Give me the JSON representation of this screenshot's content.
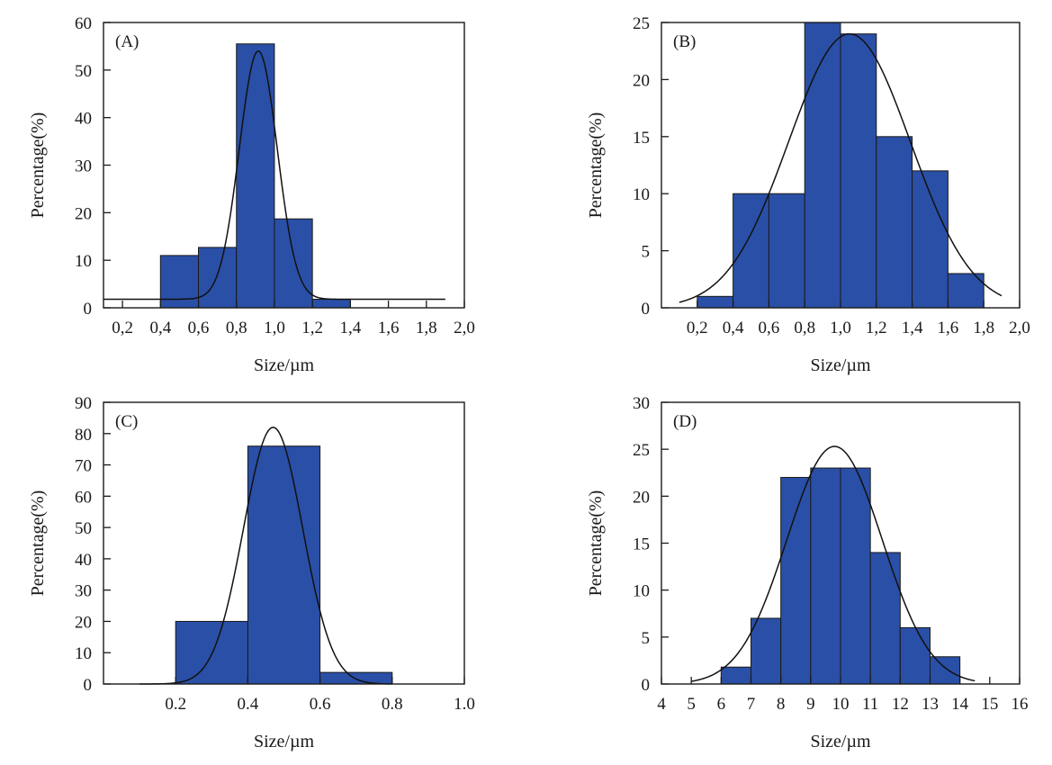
{
  "chart_data": [
    {
      "panel_label": "(A)",
      "type": "bar",
      "xlabel": "Size/µm",
      "ylabel": "Percentage(%)",
      "xlim": [
        0.1,
        2.0
      ],
      "ylim": [
        0,
        60
      ],
      "xticks": [
        0.2,
        0.4,
        0.6,
        0.8,
        1.0,
        1.2,
        1.4,
        1.6,
        1.8,
        2.0
      ],
      "xtick_labels": [
        "0,2",
        "0,4",
        "0,6",
        "0,8",
        "1,0",
        "1,2",
        "1,4",
        "1,6",
        "1,8",
        "2,0"
      ],
      "yticks": [
        0,
        10,
        20,
        30,
        40,
        50,
        60
      ],
      "ytick_labels": [
        "0",
        "10",
        "20",
        "30",
        "40",
        "50",
        "60"
      ],
      "bins": [
        {
          "x0": 0.4,
          "x1": 0.6,
          "value": 11
        },
        {
          "x0": 0.6,
          "x1": 0.8,
          "value": 12.7
        },
        {
          "x0": 0.8,
          "x1": 1.0,
          "value": 55.5
        },
        {
          "x0": 1.0,
          "x1": 1.2,
          "value": 18.7
        },
        {
          "x0": 1.2,
          "x1": 1.4,
          "value": 1.8
        }
      ],
      "fit_curve": {
        "type": "gaussian",
        "mean": 0.915,
        "sd": 0.1,
        "peak": 54,
        "baseline": 1.8,
        "x_range": [
          0.1,
          1.9
        ]
      }
    },
    {
      "panel_label": "(B)",
      "type": "bar",
      "xlabel": "Size/µm",
      "ylabel": "Percentage(%)",
      "xlim": [
        0.0,
        2.0
      ],
      "ylim": [
        0,
        25
      ],
      "xticks": [
        0.2,
        0.4,
        0.6,
        0.8,
        1.0,
        1.2,
        1.4,
        1.6,
        1.8,
        2.0
      ],
      "xtick_labels": [
        "0,2",
        "0,4",
        "0,6",
        "0,8",
        "1,0",
        "1,2",
        "1,4",
        "1,6",
        "1,8",
        "2,0"
      ],
      "yticks": [
        0,
        5,
        10,
        15,
        20,
        25
      ],
      "ytick_labels": [
        "0",
        "5",
        "10",
        "15",
        "20",
        "25"
      ],
      "bins": [
        {
          "x0": 0.2,
          "x1": 0.4,
          "value": 1
        },
        {
          "x0": 0.4,
          "x1": 0.6,
          "value": 10
        },
        {
          "x0": 0.6,
          "x1": 0.8,
          "value": 10
        },
        {
          "x0": 0.8,
          "x1": 1.0,
          "value": 25
        },
        {
          "x0": 1.0,
          "x1": 1.2,
          "value": 24
        },
        {
          "x0": 1.2,
          "x1": 1.4,
          "value": 15
        },
        {
          "x0": 1.4,
          "x1": 1.6,
          "value": 12
        },
        {
          "x0": 1.6,
          "x1": 1.8,
          "value": 3
        }
      ],
      "fit_curve": {
        "type": "gaussian",
        "mean": 1.05,
        "sd": 0.34,
        "peak": 24,
        "baseline": 0,
        "x_range": [
          0.1,
          1.9
        ]
      }
    },
    {
      "panel_label": "(C)",
      "type": "bar",
      "xlabel": "Size/µm",
      "ylabel": "Percentage(%)",
      "xlim": [
        0.0,
        1.0
      ],
      "ylim": [
        0,
        90
      ],
      "xticks": [
        0.2,
        0.4,
        0.6,
        0.8,
        1.0
      ],
      "xtick_labels": [
        "0.2",
        "0.4",
        "0.6",
        "0.8",
        "1.0"
      ],
      "yticks": [
        0,
        10,
        20,
        30,
        40,
        50,
        60,
        70,
        80,
        90
      ],
      "ytick_labels": [
        "0",
        "10",
        "20",
        "30",
        "40",
        "50",
        "60",
        "70",
        "80",
        "90"
      ],
      "bins": [
        {
          "x0": 0.2,
          "x1": 0.4,
          "value": 20
        },
        {
          "x0": 0.4,
          "x1": 0.6,
          "value": 76
        },
        {
          "x0": 0.6,
          "x1": 0.8,
          "value": 3.7
        }
      ],
      "fit_curve": {
        "type": "gaussian",
        "mean": 0.47,
        "sd": 0.082,
        "peak": 82,
        "baseline": 0,
        "x_range": [
          0.1,
          0.8
        ]
      }
    },
    {
      "panel_label": "(D)",
      "type": "bar",
      "xlabel": "Size/µm",
      "ylabel": "Percentage(%)",
      "xlim": [
        4,
        16
      ],
      "ylim": [
        0,
        30
      ],
      "xticks": [
        4,
        5,
        6,
        7,
        8,
        9,
        10,
        11,
        12,
        13,
        14,
        15,
        16
      ],
      "xtick_labels": [
        "4",
        "5",
        "6",
        "7",
        "8",
        "9",
        "10",
        "11",
        "12",
        "13",
        "14",
        "15",
        "16"
      ],
      "yticks": [
        0,
        5,
        10,
        15,
        20,
        25,
        30
      ],
      "ytick_labels": [
        "0",
        "5",
        "10",
        "15",
        "20",
        "25",
        "30"
      ],
      "bins": [
        {
          "x0": 6,
          "x1": 7,
          "value": 1.8
        },
        {
          "x0": 7,
          "x1": 8,
          "value": 7
        },
        {
          "x0": 8,
          "x1": 9,
          "value": 22
        },
        {
          "x0": 9,
          "x1": 10,
          "value": 23
        },
        {
          "x0": 10,
          "x1": 11,
          "value": 23
        },
        {
          "x0": 11,
          "x1": 12,
          "value": 14
        },
        {
          "x0": 12,
          "x1": 13,
          "value": 6
        },
        {
          "x0": 13,
          "x1": 14,
          "value": 2.9
        }
      ],
      "fit_curve": {
        "type": "gaussian",
        "mean": 9.8,
        "sd": 1.6,
        "peak": 25.3,
        "baseline": 0,
        "x_range": [
          5,
          14.5
        ]
      }
    }
  ]
}
